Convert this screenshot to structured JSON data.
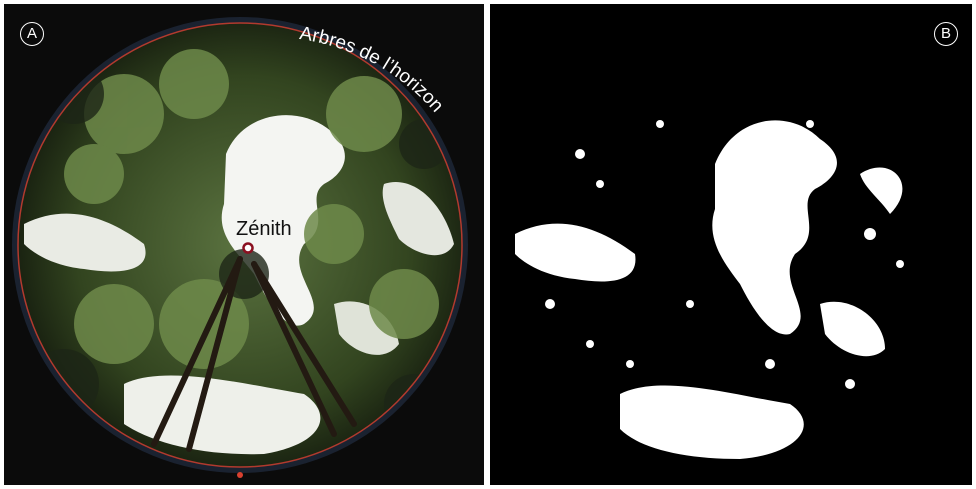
{
  "panel_a": {
    "badge": "A",
    "zenith_label": "Zénith",
    "horizon_label": "Arbres de l’horizon",
    "colors": {
      "horizon_circle": "#b23a2e",
      "zenith_marker": "#8b1020",
      "foliage_dark": "#1d2616",
      "foliage_mid": "#3f5430",
      "foliage_light": "#6e8a4a",
      "sky": "#f4f5f2"
    }
  },
  "panel_b": {
    "badge": "B",
    "colors": {
      "canopy": "#000000",
      "sky": "#ffffff"
    }
  }
}
